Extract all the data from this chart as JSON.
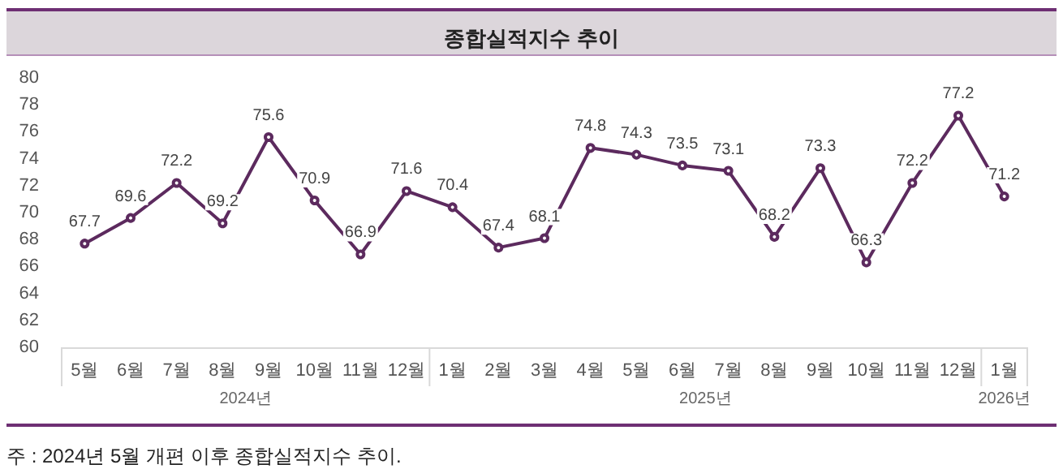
{
  "chart_data": {
    "type": "line",
    "title": "종합실적지수 추이",
    "categories": [
      "5월",
      "6월",
      "7월",
      "8월",
      "9월",
      "10월",
      "11월",
      "12월",
      "1월",
      "2월",
      "3월",
      "4월",
      "5월",
      "6월",
      "7월",
      "8월",
      "9월",
      "10월",
      "11월",
      "12월",
      "1월"
    ],
    "values": [
      67.7,
      69.6,
      72.2,
      69.2,
      75.6,
      70.9,
      66.9,
      71.6,
      70.4,
      67.4,
      68.1,
      74.8,
      74.3,
      73.5,
      73.1,
      68.2,
      73.3,
      66.3,
      72.2,
      77.2,
      71.2
    ],
    "color": "#5c2a5e",
    "ylim": [
      60,
      80
    ],
    "yticks": [
      60,
      62,
      64,
      66,
      68,
      70,
      72,
      74,
      76,
      78,
      80
    ],
    "grid": false,
    "marker": "circle",
    "line_style": "solid",
    "data_labels": true,
    "annotations": [
      "2024년",
      "2025년",
      "2026년",
      "주 : 2024년 5월 개편 이후 종합실적지수 추이."
    ]
  }
}
